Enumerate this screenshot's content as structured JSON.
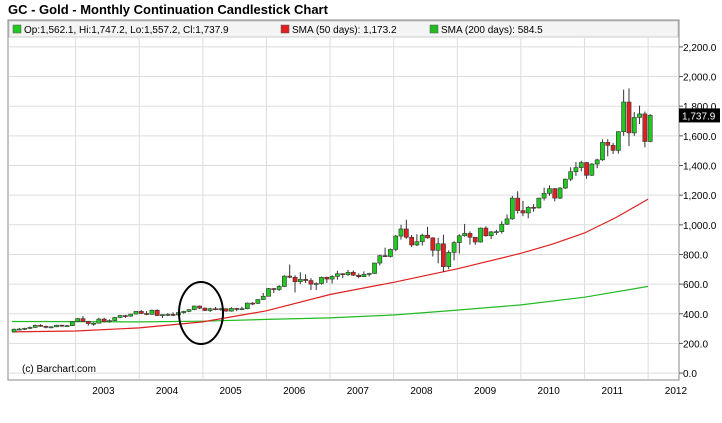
{
  "title": "GC - Gold - Monthly Continuation Candlestick Chart",
  "legend": {
    "ohlc": "Op:1,562.1, Hi:1,747.2, Lo:1,557.2, Cl:1,737.9",
    "sma50": "SMA (50 days): 1,173.2",
    "sma200": "SMA (200 days): 584.5"
  },
  "credit": "(c) Barchart.com",
  "last_price_label": "1,737.9",
  "colors": {
    "up": "#22c922",
    "down": "#e02020",
    "sma50": "#e02020",
    "sma200": "#22bb22",
    "last_price_badge": "#000000",
    "grid": "#dddddd"
  },
  "chart_data": {
    "type": "candlestick",
    "title": "GC - Gold - Monthly Continuation Candlestick Chart",
    "x_tick_labels": [
      "2003",
      "2004",
      "2005",
      "2006",
      "2007",
      "2008",
      "2009",
      "2010",
      "2011",
      "2012"
    ],
    "y_tick_labels": [
      "0.0",
      "200.0",
      "400.0",
      "600.0",
      "800.0",
      "1,000.0",
      "1,200.0",
      "1,400.0",
      "1,600.0",
      "1,800.0",
      "2,000.0",
      "2,200.0"
    ],
    "ylim": [
      -40,
      2260
    ],
    "xlim": [
      2002.0,
      2012.25
    ],
    "grid": true,
    "last_price": 1737.9,
    "annotation": "circle around early 2005",
    "series": [
      {
        "name": "GC - Gold",
        "kind": "candlestick",
        "points": [
          {
            "t": 2002.0,
            "o": 278,
            "h": 300,
            "l": 277,
            "c": 296
          },
          {
            "t": 2002.083,
            "o": 296,
            "h": 304,
            "l": 288,
            "c": 297
          },
          {
            "t": 2002.167,
            "o": 297,
            "h": 305,
            "l": 290,
            "c": 302
          },
          {
            "t": 2002.25,
            "o": 302,
            "h": 314,
            "l": 296,
            "c": 308
          },
          {
            "t": 2002.333,
            "o": 308,
            "h": 327,
            "l": 305,
            "c": 322
          },
          {
            "t": 2002.417,
            "o": 322,
            "h": 330,
            "l": 312,
            "c": 315
          },
          {
            "t": 2002.5,
            "o": 315,
            "h": 320,
            "l": 302,
            "c": 308
          },
          {
            "t": 2002.583,
            "o": 308,
            "h": 316,
            "l": 302,
            "c": 312
          },
          {
            "t": 2002.667,
            "o": 312,
            "h": 326,
            "l": 310,
            "c": 323
          },
          {
            "t": 2002.75,
            "o": 323,
            "h": 326,
            "l": 313,
            "c": 318
          },
          {
            "t": 2002.833,
            "o": 318,
            "h": 324,
            "l": 313,
            "c": 320
          },
          {
            "t": 2002.917,
            "o": 320,
            "h": 350,
            "l": 318,
            "c": 347
          },
          {
            "t": 2003.0,
            "o": 347,
            "h": 372,
            "l": 343,
            "c": 367
          },
          {
            "t": 2003.083,
            "o": 367,
            "h": 385,
            "l": 345,
            "c": 348
          },
          {
            "t": 2003.167,
            "o": 348,
            "h": 352,
            "l": 320,
            "c": 334
          },
          {
            "t": 2003.25,
            "o": 334,
            "h": 342,
            "l": 320,
            "c": 336
          },
          {
            "t": 2003.333,
            "o": 336,
            "h": 373,
            "l": 334,
            "c": 364
          },
          {
            "t": 2003.417,
            "o": 364,
            "h": 372,
            "l": 342,
            "c": 346
          },
          {
            "t": 2003.5,
            "o": 346,
            "h": 362,
            "l": 340,
            "c": 354
          },
          {
            "t": 2003.583,
            "o": 354,
            "h": 378,
            "l": 350,
            "c": 375
          },
          {
            "t": 2003.667,
            "o": 375,
            "h": 392,
            "l": 370,
            "c": 388
          },
          {
            "t": 2003.75,
            "o": 388,
            "h": 392,
            "l": 372,
            "c": 384
          },
          {
            "t": 2003.833,
            "o": 384,
            "h": 400,
            "l": 380,
            "c": 398
          },
          {
            "t": 2003.917,
            "o": 398,
            "h": 418,
            "l": 396,
            "c": 416
          },
          {
            "t": 2004.0,
            "o": 416,
            "h": 426,
            "l": 398,
            "c": 402
          },
          {
            "t": 2004.083,
            "o": 402,
            "h": 418,
            "l": 390,
            "c": 396
          },
          {
            "t": 2004.167,
            "o": 396,
            "h": 428,
            "l": 394,
            "c": 424
          },
          {
            "t": 2004.25,
            "o": 424,
            "h": 430,
            "l": 384,
            "c": 388
          },
          {
            "t": 2004.333,
            "o": 388,
            "h": 396,
            "l": 372,
            "c": 394
          },
          {
            "t": 2004.417,
            "o": 394,
            "h": 404,
            "l": 384,
            "c": 396
          },
          {
            "t": 2004.5,
            "o": 396,
            "h": 410,
            "l": 384,
            "c": 392
          },
          {
            "t": 2004.583,
            "o": 392,
            "h": 412,
            "l": 390,
            "c": 408
          },
          {
            "t": 2004.667,
            "o": 408,
            "h": 420,
            "l": 400,
            "c": 416
          },
          {
            "t": 2004.75,
            "o": 416,
            "h": 432,
            "l": 412,
            "c": 428
          },
          {
            "t": 2004.833,
            "o": 428,
            "h": 455,
            "l": 424,
            "c": 452
          },
          {
            "t": 2004.917,
            "o": 452,
            "h": 456,
            "l": 432,
            "c": 438
          },
          {
            "t": 2005.0,
            "o": 438,
            "h": 442,
            "l": 418,
            "c": 422
          },
          {
            "t": 2005.083,
            "o": 422,
            "h": 440,
            "l": 412,
            "c": 434
          },
          {
            "t": 2005.167,
            "o": 434,
            "h": 446,
            "l": 424,
            "c": 428
          },
          {
            "t": 2005.25,
            "o": 428,
            "h": 438,
            "l": 420,
            "c": 434
          },
          {
            "t": 2005.333,
            "o": 434,
            "h": 436,
            "l": 414,
            "c": 418
          },
          {
            "t": 2005.417,
            "o": 418,
            "h": 444,
            "l": 414,
            "c": 436
          },
          {
            "t": 2005.5,
            "o": 436,
            "h": 440,
            "l": 418,
            "c": 430
          },
          {
            "t": 2005.583,
            "o": 430,
            "h": 448,
            "l": 424,
            "c": 434
          },
          {
            "t": 2005.667,
            "o": 434,
            "h": 476,
            "l": 430,
            "c": 472
          },
          {
            "t": 2005.75,
            "o": 472,
            "h": 478,
            "l": 458,
            "c": 470
          },
          {
            "t": 2005.833,
            "o": 470,
            "h": 498,
            "l": 466,
            "c": 496
          },
          {
            "t": 2005.917,
            "o": 496,
            "h": 540,
            "l": 494,
            "c": 518
          },
          {
            "t": 2006.0,
            "o": 518,
            "h": 574,
            "l": 516,
            "c": 570
          },
          {
            "t": 2006.083,
            "o": 570,
            "h": 574,
            "l": 540,
            "c": 564
          },
          {
            "t": 2006.167,
            "o": 564,
            "h": 594,
            "l": 554,
            "c": 584
          },
          {
            "t": 2006.25,
            "o": 584,
            "h": 660,
            "l": 580,
            "c": 654
          },
          {
            "t": 2006.333,
            "o": 654,
            "h": 732,
            "l": 640,
            "c": 646
          },
          {
            "t": 2006.417,
            "o": 646,
            "h": 660,
            "l": 544,
            "c": 616
          },
          {
            "t": 2006.5,
            "o": 616,
            "h": 680,
            "l": 600,
            "c": 632
          },
          {
            "t": 2006.583,
            "o": 632,
            "h": 666,
            "l": 608,
            "c": 624
          },
          {
            "t": 2006.667,
            "o": 624,
            "h": 640,
            "l": 560,
            "c": 600
          },
          {
            "t": 2006.75,
            "o": 600,
            "h": 612,
            "l": 560,
            "c": 604
          },
          {
            "t": 2006.833,
            "o": 604,
            "h": 650,
            "l": 596,
            "c": 646
          },
          {
            "t": 2006.917,
            "o": 646,
            "h": 650,
            "l": 608,
            "c": 634
          },
          {
            "t": 2007.0,
            "o": 634,
            "h": 660,
            "l": 604,
            "c": 652
          },
          {
            "t": 2007.083,
            "o": 652,
            "h": 690,
            "l": 630,
            "c": 670
          },
          {
            "t": 2007.167,
            "o": 670,
            "h": 674,
            "l": 640,
            "c": 664
          },
          {
            "t": 2007.25,
            "o": 664,
            "h": 696,
            "l": 656,
            "c": 680
          },
          {
            "t": 2007.333,
            "o": 680,
            "h": 692,
            "l": 654,
            "c": 660
          },
          {
            "t": 2007.417,
            "o": 660,
            "h": 672,
            "l": 640,
            "c": 650
          },
          {
            "t": 2007.5,
            "o": 650,
            "h": 686,
            "l": 648,
            "c": 666
          },
          {
            "t": 2007.583,
            "o": 666,
            "h": 676,
            "l": 652,
            "c": 672
          },
          {
            "t": 2007.667,
            "o": 672,
            "h": 746,
            "l": 668,
            "c": 742
          },
          {
            "t": 2007.75,
            "o": 742,
            "h": 798,
            "l": 726,
            "c": 792
          },
          {
            "t": 2007.833,
            "o": 792,
            "h": 846,
            "l": 784,
            "c": 786
          },
          {
            "t": 2007.917,
            "o": 786,
            "h": 840,
            "l": 780,
            "c": 834
          },
          {
            "t": 2008.0,
            "o": 834,
            "h": 932,
            "l": 822,
            "c": 924
          },
          {
            "t": 2008.083,
            "o": 924,
            "h": 1000,
            "l": 900,
            "c": 972
          },
          {
            "t": 2008.167,
            "o": 972,
            "h": 1034,
            "l": 906,
            "c": 916
          },
          {
            "t": 2008.25,
            "o": 916,
            "h": 932,
            "l": 850,
            "c": 864
          },
          {
            "t": 2008.333,
            "o": 864,
            "h": 936,
            "l": 856,
            "c": 886
          },
          {
            "t": 2008.417,
            "o": 886,
            "h": 940,
            "l": 860,
            "c": 930
          },
          {
            "t": 2008.5,
            "o": 930,
            "h": 986,
            "l": 906,
            "c": 912
          },
          {
            "t": 2008.583,
            "o": 912,
            "h": 916,
            "l": 786,
            "c": 828
          },
          {
            "t": 2008.667,
            "o": 828,
            "h": 912,
            "l": 740,
            "c": 872
          },
          {
            "t": 2008.75,
            "o": 872,
            "h": 934,
            "l": 682,
            "c": 718
          },
          {
            "t": 2008.833,
            "o": 718,
            "h": 828,
            "l": 700,
            "c": 814
          },
          {
            "t": 2008.917,
            "o": 814,
            "h": 890,
            "l": 760,
            "c": 880
          },
          {
            "t": 2009.0,
            "o": 880,
            "h": 936,
            "l": 806,
            "c": 926
          },
          {
            "t": 2009.083,
            "o": 926,
            "h": 1006,
            "l": 920,
            "c": 942
          },
          {
            "t": 2009.167,
            "o": 942,
            "h": 956,
            "l": 866,
            "c": 916
          },
          {
            "t": 2009.25,
            "o": 916,
            "h": 918,
            "l": 865,
            "c": 884
          },
          {
            "t": 2009.333,
            "o": 884,
            "h": 982,
            "l": 880,
            "c": 978
          },
          {
            "t": 2009.417,
            "o": 978,
            "h": 990,
            "l": 920,
            "c": 926
          },
          {
            "t": 2009.5,
            "o": 926,
            "h": 958,
            "l": 904,
            "c": 952
          },
          {
            "t": 2009.583,
            "o": 952,
            "h": 966,
            "l": 932,
            "c": 954
          },
          {
            "t": 2009.667,
            "o": 954,
            "h": 1024,
            "l": 940,
            "c": 1004
          },
          {
            "t": 2009.75,
            "o": 1004,
            "h": 1070,
            "l": 1000,
            "c": 1040
          },
          {
            "t": 2009.833,
            "o": 1040,
            "h": 1194,
            "l": 1034,
            "c": 1180
          },
          {
            "t": 2009.917,
            "o": 1180,
            "h": 1226,
            "l": 1076,
            "c": 1096
          },
          {
            "t": 2010.0,
            "o": 1096,
            "h": 1162,
            "l": 1058,
            "c": 1080
          },
          {
            "t": 2010.083,
            "o": 1080,
            "h": 1126,
            "l": 1044,
            "c": 1118
          },
          {
            "t": 2010.167,
            "o": 1118,
            "h": 1140,
            "l": 1088,
            "c": 1114
          },
          {
            "t": 2010.25,
            "o": 1114,
            "h": 1182,
            "l": 1110,
            "c": 1180
          },
          {
            "t": 2010.333,
            "o": 1180,
            "h": 1250,
            "l": 1164,
            "c": 1212
          },
          {
            "t": 2010.417,
            "o": 1212,
            "h": 1266,
            "l": 1196,
            "c": 1244
          },
          {
            "t": 2010.5,
            "o": 1244,
            "h": 1248,
            "l": 1158,
            "c": 1180
          },
          {
            "t": 2010.583,
            "o": 1180,
            "h": 1254,
            "l": 1174,
            "c": 1248
          },
          {
            "t": 2010.667,
            "o": 1248,
            "h": 1312,
            "l": 1242,
            "c": 1308
          },
          {
            "t": 2010.75,
            "o": 1308,
            "h": 1388,
            "l": 1296,
            "c": 1358
          },
          {
            "t": 2010.833,
            "o": 1358,
            "h": 1424,
            "l": 1330,
            "c": 1386
          },
          {
            "t": 2010.917,
            "o": 1386,
            "h": 1432,
            "l": 1360,
            "c": 1420
          },
          {
            "t": 2011.0,
            "o": 1420,
            "h": 1424,
            "l": 1310,
            "c": 1334
          },
          {
            "t": 2011.083,
            "o": 1334,
            "h": 1416,
            "l": 1330,
            "c": 1410
          },
          {
            "t": 2011.167,
            "o": 1410,
            "h": 1446,
            "l": 1382,
            "c": 1438
          },
          {
            "t": 2011.25,
            "o": 1438,
            "h": 1576,
            "l": 1432,
            "c": 1556
          },
          {
            "t": 2011.333,
            "o": 1556,
            "h": 1578,
            "l": 1462,
            "c": 1536
          },
          {
            "t": 2011.417,
            "o": 1536,
            "h": 1552,
            "l": 1478,
            "c": 1502
          },
          {
            "t": 2011.5,
            "o": 1502,
            "h": 1632,
            "l": 1480,
            "c": 1628
          },
          {
            "t": 2011.583,
            "o": 1628,
            "h": 1912,
            "l": 1600,
            "c": 1828
          },
          {
            "t": 2011.667,
            "o": 1828,
            "h": 1920,
            "l": 1532,
            "c": 1620
          },
          {
            "t": 2011.75,
            "o": 1620,
            "h": 1760,
            "l": 1600,
            "c": 1724
          },
          {
            "t": 2011.833,
            "o": 1724,
            "h": 1804,
            "l": 1680,
            "c": 1748
          },
          {
            "t": 2011.917,
            "o": 1748,
            "h": 1764,
            "l": 1522,
            "c": 1562
          },
          {
            "t": 2012.0,
            "o": 1562.1,
            "h": 1747.2,
            "l": 1557.2,
            "c": 1737.9
          }
        ]
      },
      {
        "name": "SMA (50 days)",
        "kind": "line",
        "x": [
          2002.0,
          2003.0,
          2004.0,
          2005.0,
          2006.0,
          2007.0,
          2008.0,
          2009.0,
          2010.0,
          2010.5,
          2011.0,
          2011.5,
          2012.0
        ],
        "y": [
          278,
          284,
          305,
          345,
          420,
          530,
          612,
          703,
          808,
          870,
          945,
          1050,
          1173.2
        ]
      },
      {
        "name": "SMA (200 days)",
        "kind": "line",
        "x": [
          2002.0,
          2003.0,
          2004.0,
          2005.0,
          2006.0,
          2007.0,
          2008.0,
          2009.0,
          2010.0,
          2011.0,
          2012.0
        ],
        "y": [
          348,
          347,
          345,
          350,
          362,
          372,
          392,
          425,
          460,
          512,
          584.5
        ]
      }
    ]
  }
}
